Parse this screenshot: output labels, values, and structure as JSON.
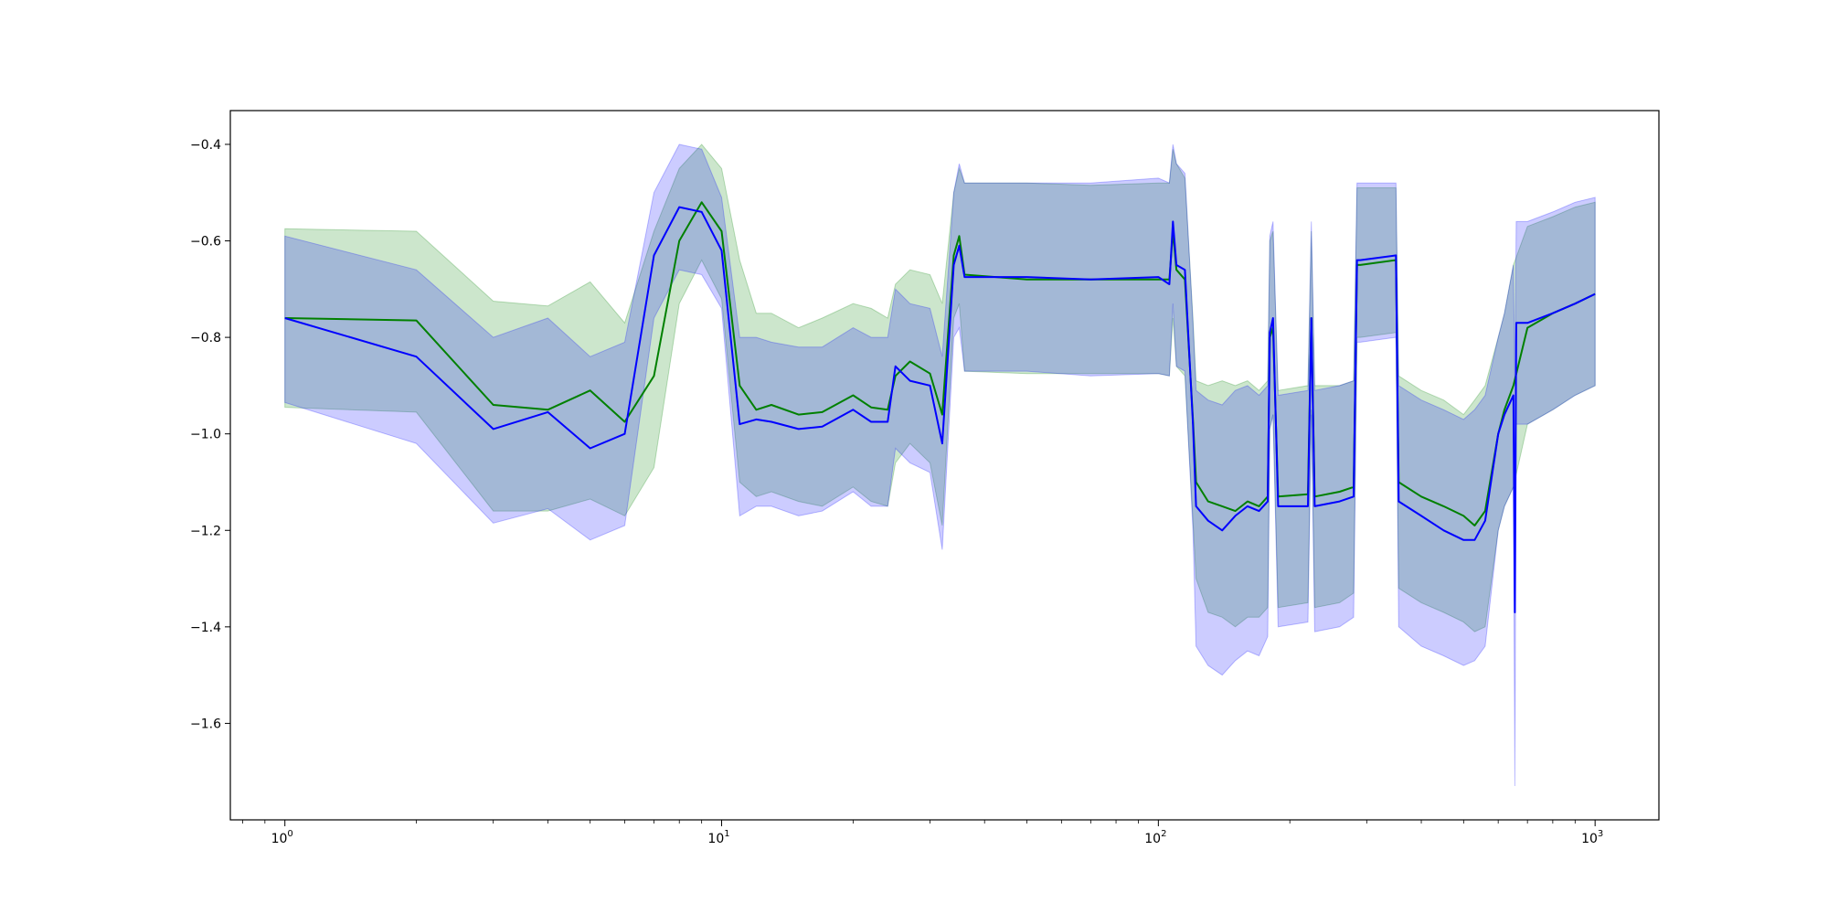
{
  "chart_data": {
    "type": "line",
    "title": "",
    "xlabel": "",
    "ylabel": "",
    "xscale": "log",
    "xlim": [
      0.75,
      1400
    ],
    "ylim": [
      -1.8,
      -0.33
    ],
    "grid": false,
    "legend": "none",
    "x_ticks": [
      {
        "value": 1,
        "base": "10",
        "exp": "0"
      },
      {
        "value": 10,
        "base": "10",
        "exp": "1"
      },
      {
        "value": 100,
        "base": "10",
        "exp": "2"
      },
      {
        "value": 1000,
        "base": "10",
        "exp": "3"
      }
    ],
    "y_ticks": [
      {
        "value": -0.4,
        "label": "−0.4"
      },
      {
        "value": -0.6,
        "label": "−0.6"
      },
      {
        "value": -0.8,
        "label": "−0.8"
      },
      {
        "value": -1.0,
        "label": "−1.0"
      },
      {
        "value": -1.2,
        "label": "−1.2"
      },
      {
        "value": -1.4,
        "label": "−1.4"
      },
      {
        "value": -1.6,
        "label": "−1.6"
      }
    ],
    "series": [
      {
        "color": "#008000",
        "band_color": "#008000",
        "x": [
          1,
          2,
          3,
          4,
          5,
          6,
          7,
          8,
          9,
          10,
          11,
          12,
          13,
          15,
          17,
          20,
          22,
          24,
          25,
          27,
          30,
          32,
          34,
          35,
          36,
          50,
          70,
          100,
          106,
          108,
          110,
          115,
          120,
          122,
          130,
          140,
          150,
          160,
          170,
          178,
          180,
          183,
          188,
          220,
          224,
          228,
          260,
          280,
          285,
          290,
          350,
          355,
          400,
          450,
          500,
          530,
          560,
          600,
          620,
          650,
          700,
          800,
          900,
          1000
        ],
        "mean": [
          -0.76,
          -0.765,
          -0.94,
          -0.95,
          -0.91,
          -0.975,
          -0.88,
          -0.6,
          -0.52,
          -0.58,
          -0.9,
          -0.95,
          -0.94,
          -0.96,
          -0.955,
          -0.92,
          -0.945,
          -0.95,
          -0.88,
          -0.85,
          -0.875,
          -0.96,
          -0.63,
          -0.59,
          -0.67,
          -0.68,
          -0.68,
          -0.68,
          -0.68,
          -0.58,
          -0.66,
          -0.68,
          -0.97,
          -1.1,
          -1.14,
          -1.15,
          -1.16,
          -1.14,
          -1.15,
          -1.13,
          -0.8,
          -0.78,
          -1.13,
          -1.125,
          -0.76,
          -1.13,
          -1.12,
          -1.11,
          -0.65,
          -0.65,
          -0.64,
          -1.1,
          -1.13,
          -1.15,
          -1.17,
          -1.19,
          -1.16,
          -1.0,
          -0.95,
          -0.9,
          -0.78,
          -0.75,
          -0.73,
          -0.71
        ],
        "upper": [
          -0.575,
          -0.58,
          -0.725,
          -0.735,
          -0.685,
          -0.77,
          -0.58,
          -0.45,
          -0.4,
          -0.45,
          -0.64,
          -0.75,
          -0.75,
          -0.78,
          -0.76,
          -0.73,
          -0.74,
          -0.76,
          -0.69,
          -0.66,
          -0.67,
          -0.73,
          -0.5,
          -0.45,
          -0.48,
          -0.48,
          -0.485,
          -0.48,
          -0.48,
          -0.41,
          -0.44,
          -0.47,
          -0.76,
          -0.89,
          -0.9,
          -0.89,
          -0.9,
          -0.89,
          -0.91,
          -0.89,
          -0.6,
          -0.58,
          -0.91,
          -0.9,
          -0.58,
          -0.9,
          -0.9,
          -0.89,
          -0.49,
          -0.49,
          -0.49,
          -0.88,
          -0.91,
          -0.93,
          -0.96,
          -0.93,
          -0.9,
          -0.8,
          -0.75,
          -0.65,
          -0.57,
          -0.55,
          -0.53,
          -0.52
        ],
        "lower": [
          -0.945,
          -0.955,
          -1.16,
          -1.16,
          -1.135,
          -1.17,
          -1.07,
          -0.73,
          -0.64,
          -0.72,
          -1.1,
          -1.13,
          -1.12,
          -1.14,
          -1.15,
          -1.11,
          -1.14,
          -1.15,
          -1.06,
          -1.02,
          -1.06,
          -1.19,
          -0.76,
          -0.73,
          -0.87,
          -0.875,
          -0.875,
          -0.875,
          -0.88,
          -0.76,
          -0.86,
          -0.88,
          -1.18,
          -1.3,
          -1.37,
          -1.38,
          -1.4,
          -1.38,
          -1.38,
          -1.36,
          -0.99,
          -0.96,
          -1.36,
          -1.35,
          -0.95,
          -1.36,
          -1.35,
          -1.33,
          -0.8,
          -0.8,
          -0.79,
          -1.32,
          -1.35,
          -1.37,
          -1.39,
          -1.41,
          -1.4,
          -1.2,
          -1.15,
          -1.11,
          -0.98,
          -0.95,
          -0.92,
          -0.9
        ]
      },
      {
        "color": "#0000ff",
        "band_color": "#0000ff",
        "x": [
          1,
          2,
          3,
          4,
          5,
          6,
          7,
          8,
          9,
          10,
          11,
          12,
          13,
          15,
          17,
          20,
          22,
          24,
          25,
          27,
          30,
          32,
          34,
          35,
          36,
          50,
          70,
          100,
          106,
          108,
          110,
          115,
          120,
          122,
          130,
          140,
          150,
          160,
          170,
          178,
          180,
          183,
          188,
          220,
          224,
          228,
          260,
          280,
          285,
          290,
          350,
          355,
          400,
          450,
          500,
          530,
          560,
          600,
          620,
          650,
          655,
          660,
          700,
          800,
          900,
          1000
        ],
        "mean": [
          -0.76,
          -0.84,
          -0.99,
          -0.955,
          -1.03,
          -1.0,
          -0.63,
          -0.53,
          -0.54,
          -0.62,
          -0.98,
          -0.97,
          -0.975,
          -0.99,
          -0.985,
          -0.95,
          -0.975,
          -0.975,
          -0.86,
          -0.89,
          -0.9,
          -1.02,
          -0.65,
          -0.61,
          -0.675,
          -0.675,
          -0.68,
          -0.675,
          -0.69,
          -0.56,
          -0.65,
          -0.66,
          -0.98,
          -1.15,
          -1.18,
          -1.2,
          -1.17,
          -1.15,
          -1.16,
          -1.14,
          -0.79,
          -0.76,
          -1.15,
          -1.15,
          -0.76,
          -1.15,
          -1.14,
          -1.13,
          -0.64,
          -0.64,
          -0.63,
          -1.14,
          -1.17,
          -1.2,
          -1.22,
          -1.22,
          -1.18,
          -1.0,
          -0.96,
          -0.92,
          -1.37,
          -0.77,
          -0.77,
          -0.75,
          -0.73,
          -0.71
        ],
        "upper": [
          -0.59,
          -0.66,
          -0.8,
          -0.76,
          -0.84,
          -0.81,
          -0.5,
          -0.4,
          -0.41,
          -0.51,
          -0.8,
          -0.8,
          -0.81,
          -0.82,
          -0.82,
          -0.78,
          -0.8,
          -0.8,
          -0.7,
          -0.73,
          -0.74,
          -0.84,
          -0.5,
          -0.44,
          -0.48,
          -0.48,
          -0.48,
          -0.47,
          -0.48,
          -0.4,
          -0.44,
          -0.46,
          -0.77,
          -0.91,
          -0.93,
          -0.94,
          -0.91,
          -0.9,
          -0.92,
          -0.9,
          -0.59,
          -0.56,
          -0.92,
          -0.91,
          -0.56,
          -0.91,
          -0.9,
          -0.89,
          -0.48,
          -0.48,
          -0.48,
          -0.9,
          -0.93,
          -0.95,
          -0.97,
          -0.95,
          -0.92,
          -0.8,
          -0.75,
          -0.65,
          -0.9,
          -0.56,
          -0.56,
          -0.54,
          -0.52,
          -0.51
        ],
        "lower": [
          -0.935,
          -1.02,
          -1.185,
          -1.155,
          -1.22,
          -1.19,
          -0.76,
          -0.66,
          -0.67,
          -0.74,
          -1.17,
          -1.15,
          -1.15,
          -1.17,
          -1.16,
          -1.12,
          -1.15,
          -1.15,
          -1.03,
          -1.06,
          -1.08,
          -1.24,
          -0.8,
          -0.78,
          -0.87,
          -0.87,
          -0.88,
          -0.875,
          -0.88,
          -0.73,
          -0.86,
          -0.87,
          -1.2,
          -1.44,
          -1.48,
          -1.5,
          -1.47,
          -1.45,
          -1.46,
          -1.42,
          -0.99,
          -0.96,
          -1.4,
          -1.39,
          -0.96,
          -1.41,
          -1.4,
          -1.38,
          -0.81,
          -0.81,
          -0.8,
          -1.4,
          -1.44,
          -1.46,
          -1.48,
          -1.47,
          -1.44,
          -1.2,
          -1.15,
          -1.11,
          -1.73,
          -0.98,
          -0.98,
          -0.95,
          -0.92,
          -0.9
        ]
      }
    ]
  }
}
